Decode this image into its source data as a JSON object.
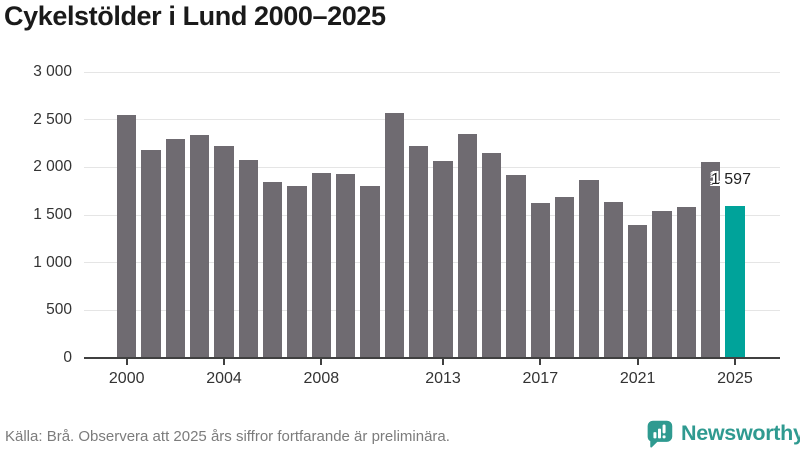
{
  "title": "Cykelstölder i Lund 2000–2025",
  "source_note": "Källa: Brå. Observera att 2025 års siffror fortfarande är preliminära.",
  "brand": {
    "name": "Newsworthy"
  },
  "colors": {
    "bar": "#6f6b71",
    "bar_highlight": "#00a39a",
    "brand": "#2f9a90",
    "grid": "#e5e5e5",
    "axis": "#404040",
    "title_text": "#1a1a1a",
    "tick_label": "#333333",
    "footer_text": "#7c7c7c",
    "annotation_text": "#222222"
  },
  "chart_data": {
    "type": "bar",
    "title": "Cykelstölder i Lund 2000–2025",
    "xlabel": "",
    "ylabel": "",
    "x": [
      2000,
      2001,
      2002,
      2003,
      2004,
      2005,
      2006,
      2007,
      2008,
      2009,
      2010,
      2011,
      2012,
      2013,
      2014,
      2015,
      2016,
      2017,
      2018,
      2019,
      2020,
      2021,
      2022,
      2023,
      2024,
      2025
    ],
    "values": [
      2550,
      2180,
      2300,
      2340,
      2220,
      2080,
      1850,
      1800,
      1940,
      1930,
      1800,
      2570,
      2220,
      2070,
      2350,
      2150,
      1920,
      1630,
      1690,
      1870,
      1640,
      1390,
      1540,
      1580,
      2060,
      1597
    ],
    "highlight": {
      "year": 2025,
      "value": 1597,
      "label": "1 597"
    },
    "ylim": [
      0,
      3000
    ],
    "yticks": [
      {
        "value": 0,
        "label": "0"
      },
      {
        "value": 500,
        "label": "500"
      },
      {
        "value": 1000,
        "label": "1 000"
      },
      {
        "value": 1500,
        "label": "1 500"
      },
      {
        "value": 2000,
        "label": "2 000"
      },
      {
        "value": 2500,
        "label": "2 500"
      },
      {
        "value": 3000,
        "label": "3 000"
      }
    ],
    "xticks": [
      {
        "year": 2000,
        "label": "2000"
      },
      {
        "year": 2004,
        "label": "2004"
      },
      {
        "year": 2008,
        "label": "2008"
      },
      {
        "year": 2013,
        "label": "2013"
      },
      {
        "year": 2017,
        "label": "2017"
      },
      {
        "year": 2021,
        "label": "2021"
      },
      {
        "year": 2025,
        "label": "2025"
      }
    ],
    "grid": "horizontal",
    "legend": "none"
  }
}
